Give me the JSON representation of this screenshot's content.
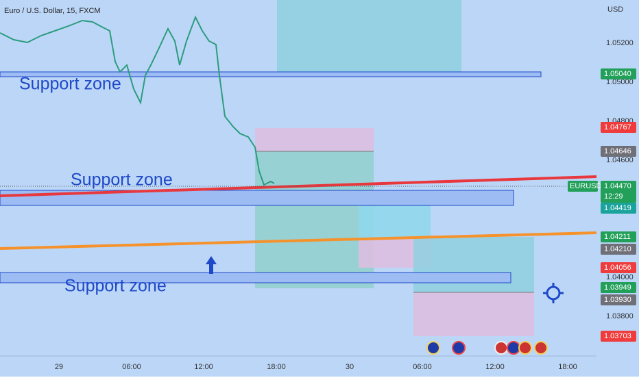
{
  "header": {
    "title": "Euro / U.S. Dollar, 15, FXCM"
  },
  "price_axis": {
    "currency": "USD",
    "labels": [
      "1.05200",
      "1.05000",
      "1.04800",
      "1.04600",
      "1.04000",
      "1.03800"
    ]
  },
  "time_axis": {
    "labels": [
      "29",
      "06:00",
      "12:00",
      "18:00",
      "30",
      "06:00",
      "12:00",
      "18:00"
    ]
  },
  "price_badges": [
    {
      "text": "1.05040",
      "kind": "green"
    },
    {
      "text": "1.04767",
      "kind": "red"
    },
    {
      "text": "1.04646",
      "kind": "gray"
    },
    {
      "text": "1.04419",
      "kind": "teal"
    },
    {
      "text": "1.04211",
      "kind": "green"
    },
    {
      "text": "1.04210",
      "kind": "gray"
    },
    {
      "text": "1.04056",
      "kind": "red"
    },
    {
      "text": "1.03949",
      "kind": "green"
    },
    {
      "text": "1.03930",
      "kind": "gray"
    },
    {
      "text": "1.03703",
      "kind": "red"
    }
  ],
  "symbol_badge": {
    "symbol": "EURUSD",
    "price": "1.04470",
    "countdown": "12:29"
  },
  "annotations": [
    "Support zone",
    "Support zone",
    "Support zone"
  ]
}
